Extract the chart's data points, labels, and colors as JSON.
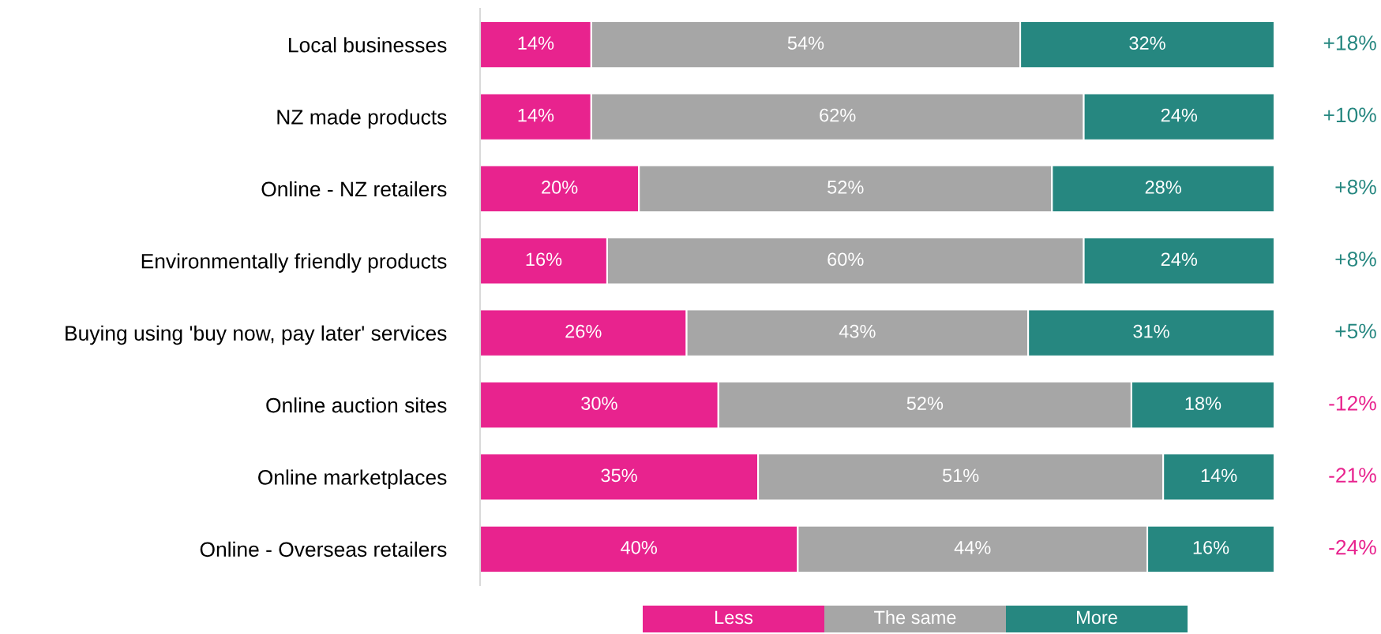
{
  "chart_data": {
    "type": "bar",
    "orientation": "horizontal",
    "stacked": true,
    "legend": "bottom",
    "grid": false,
    "tick_labels": "y",
    "categories": [
      "Local businesses",
      "NZ made products",
      "Online - NZ retailers",
      "Environmentally friendly products",
      "Buying using 'buy now, pay later' services",
      "Online auction sites",
      "Online marketplaces",
      "Online - Overseas retailers"
    ],
    "series": [
      {
        "name": "Less",
        "color": "#e8238e",
        "values": [
          14,
          14,
          20,
          16,
          26,
          30,
          35,
          40
        ],
        "value_labels": [
          "14%",
          "14%",
          "20%",
          "16%",
          "26%",
          "30%",
          "35%",
          "40%"
        ]
      },
      {
        "name": "The same",
        "color": "#a6a6a6",
        "values": [
          54,
          62,
          52,
          60,
          43,
          52,
          51,
          44
        ],
        "value_labels": [
          "54%",
          "62%",
          "52%",
          "60%",
          "43%",
          "52%",
          "51%",
          "44%"
        ]
      },
      {
        "name": "More",
        "color": "#268780",
        "values": [
          32,
          24,
          28,
          24,
          31,
          18,
          14,
          16
        ],
        "value_labels": [
          "32%",
          "24%",
          "28%",
          "24%",
          "31%",
          "18%",
          "14%",
          "16%"
        ]
      }
    ],
    "annotations": [
      "+18%",
      "+10%",
      "+8%",
      "+8%",
      "+5%",
      "-12%",
      "-21%",
      "-24%"
    ]
  }
}
